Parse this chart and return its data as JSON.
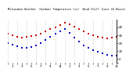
{
  "title": "Milwaukee Weather  Outdoor Temperature (vs)  Wind Chill (Last 24 Hours)",
  "bg_color": "#ffffff",
  "plot_bg": "#ffffff",
  "temp_color": "#cc0000",
  "chill_color": "#0000cc",
  "xlim": [
    0,
    23
  ],
  "ylim": [
    -5,
    50
  ],
  "ytick_vals": [
    40,
    30,
    20,
    10,
    0,
    -5
  ],
  "ytick_labels": [
    "40",
    "30",
    "20",
    "10",
    "0",
    ""
  ],
  "xtick_positions": [
    0,
    1,
    2,
    3,
    4,
    5,
    6,
    7,
    8,
    9,
    10,
    11,
    12,
    13,
    14,
    15,
    16,
    17,
    18,
    19,
    20,
    21,
    22,
    23
  ],
  "xtick_labels": [
    "",
    "1",
    "",
    "3",
    "",
    "5",
    "",
    "7",
    "",
    "9",
    "",
    "11",
    "",
    "1",
    "",
    "3",
    "",
    "5",
    "",
    "7",
    "",
    "9",
    "",
    "11"
  ],
  "temp_x": [
    0,
    1,
    2,
    3,
    4,
    5,
    6,
    7,
    8,
    9,
    10,
    11,
    12,
    13,
    14,
    15,
    16,
    17,
    18,
    19,
    20,
    21,
    22,
    23
  ],
  "temp_y": [
    32,
    30,
    28,
    27,
    28,
    29,
    30,
    32,
    35,
    38,
    40,
    43,
    46,
    44,
    41,
    38,
    35,
    32,
    30,
    28,
    27,
    26,
    27,
    28
  ],
  "chill_x": [
    0,
    1,
    2,
    3,
    4,
    5,
    6,
    7,
    8,
    9,
    10,
    11,
    12,
    13,
    14,
    15,
    16,
    17,
    18,
    19,
    20,
    21,
    22,
    23
  ],
  "chill_y": [
    20,
    18,
    16,
    14,
    14,
    15,
    17,
    20,
    24,
    28,
    32,
    35,
    38,
    33,
    27,
    22,
    17,
    14,
    11,
    9,
    7,
    5,
    4,
    4
  ],
  "vline_positions": [
    0,
    2,
    4,
    6,
    8,
    10,
    12,
    14,
    16,
    18,
    20,
    22
  ],
  "vline_color": "#bbbbbb",
  "marker_size": 1.8,
  "right_spine_color": "#000000",
  "title_fontsize": 2.5,
  "tick_fontsize": 2.8
}
